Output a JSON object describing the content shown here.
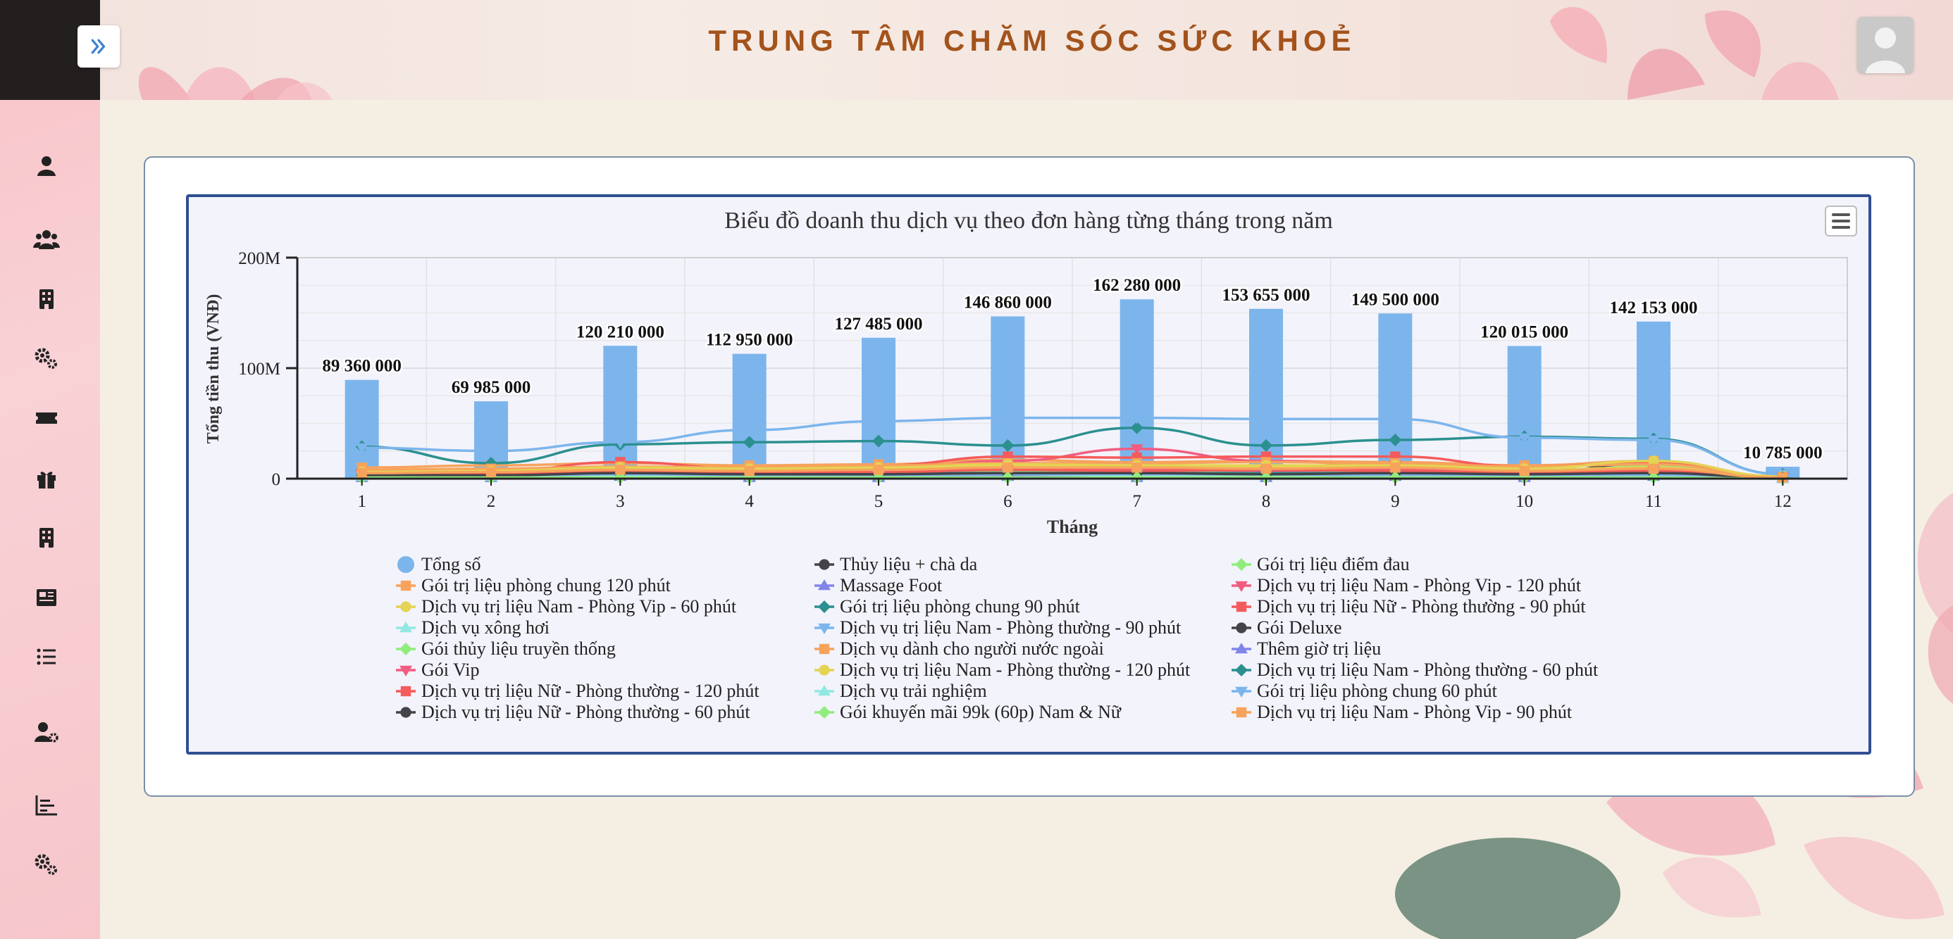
{
  "header": {
    "title": "TRUNG TÂM CHĂM SÓC SỨC KHOẺ"
  },
  "sidebar": {
    "toggle_icon": "double-chevron-right-icon",
    "icons": [
      "user-icon",
      "users-icon",
      "building-icon",
      "gears-icon",
      "ticket-icon",
      "gift-icon",
      "building-icon",
      "newspaper-icon",
      "list-icon",
      "user-gear-icon",
      "chart-bar-icon",
      "gears-icon",
      "gears-icon"
    ]
  },
  "colors": {
    "accent": "#a3531b",
    "frame": "#2f4f92",
    "total": "#7cb5ec"
  },
  "chart_data": {
    "type": "bar",
    "title": "Biểu đồ doanh thu dịch vụ theo đơn hàng từng tháng trong năm",
    "xlabel": "Tháng",
    "ylabel": "Tổng tiền thu (VNĐ)",
    "ylim": [
      0,
      200000000
    ],
    "yticks": [
      "0",
      "100M",
      "200M"
    ],
    "categories": [
      "1",
      "2",
      "3",
      "4",
      "5",
      "6",
      "7",
      "8",
      "9",
      "10",
      "11",
      "12"
    ],
    "bar_series": {
      "name": "Tổng số",
      "color": "#7cb5ec",
      "values": [
        89360000,
        69985000,
        120210000,
        112950000,
        127485000,
        146860000,
        162280000,
        153655000,
        149500000,
        120015000,
        142153000,
        10785000
      ],
      "labels": [
        "89 360 000",
        "69 985 000",
        "120 210 000",
        "112 950 000",
        "127 485 000",
        "146 860 000",
        "162 280 000",
        "153 655 000",
        "149 500 000",
        "120 015 000",
        "142 153 000",
        "10 785 000"
      ]
    },
    "line_series": [
      {
        "name": "Thủy liệu + chà da",
        "color": "#434348",
        "marker": "circle",
        "values": [
          8000000,
          6000000,
          9000000,
          7000000,
          8000000,
          5000000,
          4000000,
          6000000,
          7000000,
          5000000,
          14000000,
          1000000
        ]
      },
      {
        "name": "Gói trị liệu điểm đau",
        "color": "#90ed7d",
        "marker": "diamond",
        "values": [
          1000000,
          1000000,
          2000000,
          1000000,
          2000000,
          3000000,
          2000000,
          1000000,
          2000000,
          1000000,
          12000000,
          1000000
        ]
      },
      {
        "name": "Gói trị liệu phòng chung 120 phút",
        "color": "#f7a35c",
        "marker": "square",
        "values": [
          10000000,
          12000000,
          14000000,
          12000000,
          13000000,
          17000000,
          15000000,
          16000000,
          15000000,
          12000000,
          16000000,
          2000000
        ]
      },
      {
        "name": "Massage Foot",
        "color": "#8085e9",
        "marker": "triangle",
        "values": [
          2000000,
          2000000,
          3000000,
          2000000,
          2000000,
          3000000,
          3000000,
          2000000,
          3000000,
          2000000,
          4000000,
          1000000
        ]
      },
      {
        "name": "Dịch vụ trị liệu Nam - Phòng Vip - 120 phút",
        "color": "#f15c80",
        "marker": "triangle-down",
        "values": [
          4000000,
          5000000,
          8000000,
          6000000,
          9000000,
          16000000,
          27000000,
          16000000,
          12000000,
          8000000,
          10000000,
          1000000
        ]
      },
      {
        "name": "Dịch vụ trị liệu Nam - Phòng Vip - 60 phút",
        "color": "#e4d354",
        "marker": "circle",
        "values": [
          5000000,
          6000000,
          10000000,
          8000000,
          10000000,
          12000000,
          11000000,
          10000000,
          12000000,
          8000000,
          10000000,
          1000000
        ]
      },
      {
        "name": "Gói trị liệu phòng chung 90 phút",
        "color": "#2b908f",
        "marker": "diamond",
        "values": [
          29000000,
          14000000,
          31000000,
          33000000,
          34000000,
          30000000,
          46000000,
          30000000,
          35000000,
          38000000,
          36000000,
          4000000
        ]
      },
      {
        "name": "Dịch vụ trị liệu Nữ - Phòng thường - 90 phút",
        "color": "#f45b5b",
        "marker": "square",
        "values": [
          6000000,
          6000000,
          15000000,
          9000000,
          12000000,
          20000000,
          19000000,
          20000000,
          20000000,
          11000000,
          14000000,
          2000000
        ]
      },
      {
        "name": "Dịch vụ xông hơi",
        "color": "#91e8e1",
        "marker": "triangle",
        "values": [
          1000000,
          1000000,
          2000000,
          1000000,
          1000000,
          2000000,
          2000000,
          2000000,
          2000000,
          1000000,
          2000000,
          0
        ]
      },
      {
        "name": "Dịch vụ trị liệu Nam - Phòng thường - 90 phút",
        "color": "#7cb5ec",
        "marker": "triangle-down",
        "values": [
          28000000,
          25000000,
          33000000,
          44000000,
          52000000,
          55000000,
          55000000,
          54000000,
          54000000,
          37000000,
          35000000,
          4000000
        ]
      },
      {
        "name": "Gói Deluxe",
        "color": "#434348",
        "marker": "circle",
        "values": [
          2000000,
          2000000,
          4000000,
          3000000,
          3000000,
          2000000,
          2000000,
          3000000,
          4000000,
          3000000,
          6000000,
          1000000
        ]
      },
      {
        "name": "Gói thủy liệu truyền thống",
        "color": "#90ed7d",
        "marker": "diamond",
        "values": [
          3000000,
          3000000,
          6000000,
          4000000,
          5000000,
          6000000,
          5000000,
          6000000,
          5000000,
          4000000,
          8000000,
          1000000
        ]
      },
      {
        "name": "Dịch vụ dành cho người nước ngoài",
        "color": "#f7a35c",
        "marker": "square",
        "values": [
          8000000,
          9000000,
          11000000,
          10000000,
          12000000,
          14000000,
          14000000,
          15000000,
          14000000,
          11000000,
          13000000,
          1000000
        ]
      },
      {
        "name": "Thêm giờ trị liệu",
        "color": "#8085e9",
        "marker": "triangle",
        "values": [
          1000000,
          1000000,
          2000000,
          1000000,
          1000000,
          2000000,
          1000000,
          1000000,
          2000000,
          1000000,
          2000000,
          0
        ]
      },
      {
        "name": "Gói Vip",
        "color": "#f15c80",
        "marker": "triangle-down",
        "values": [
          3000000,
          4000000,
          6000000,
          5000000,
          6000000,
          8000000,
          9000000,
          7000000,
          8000000,
          5000000,
          7000000,
          1000000
        ]
      },
      {
        "name": "Dịch vụ trị liệu Nam - Phòng thường - 120 phút",
        "color": "#e4d354",
        "marker": "circle",
        "values": [
          6000000,
          7000000,
          10000000,
          9000000,
          10000000,
          13000000,
          12000000,
          12000000,
          12000000,
          9000000,
          16000000,
          2000000
        ]
      },
      {
        "name": "Dịch vụ trị liệu Nam - Phòng thường - 60 phút",
        "color": "#2b908f",
        "marker": "diamond",
        "values": [
          3000000,
          3000000,
          5000000,
          4000000,
          5000000,
          5000000,
          5000000,
          5000000,
          5000000,
          4000000,
          6000000,
          1000000
        ]
      },
      {
        "name": "Dịch vụ trị liệu Nữ - Phòng thường - 120 phút",
        "color": "#f45b5b",
        "marker": "square",
        "values": [
          4000000,
          4000000,
          7000000,
          5000000,
          6000000,
          8000000,
          7000000,
          8000000,
          7000000,
          5000000,
          7000000,
          1000000
        ]
      },
      {
        "name": "Dịch vụ trải nghiệm",
        "color": "#91e8e1",
        "marker": "triangle",
        "values": [
          2000000,
          2000000,
          3000000,
          3000000,
          3000000,
          4000000,
          3000000,
          3000000,
          4000000,
          3000000,
          4000000,
          0
        ]
      },
      {
        "name": "Gói trị liệu phòng chung 60 phút",
        "color": "#7cb5ec",
        "marker": "triangle-down",
        "values": [
          2000000,
          2000000,
          4000000,
          3000000,
          3000000,
          4000000,
          4000000,
          4000000,
          3000000,
          3000000,
          3000000,
          0
        ]
      },
      {
        "name": "Dịch vụ trị liệu Nữ - Phòng thường - 60 phút",
        "color": "#434348",
        "marker": "circle",
        "values": [
          3000000,
          3000000,
          5000000,
          4000000,
          4000000,
          5000000,
          5000000,
          4000000,
          5000000,
          4000000,
          5000000,
          1000000
        ]
      },
      {
        "name": "Gói khuyến mãi 99k (60p) Nam & Nữ",
        "color": "#90ed7d",
        "marker": "diamond",
        "values": [
          1000000,
          1000000,
          1000000,
          1000000,
          1000000,
          1000000,
          1000000,
          1000000,
          1000000,
          1000000,
          1000000,
          0
        ]
      },
      {
        "name": "Dịch vụ trị liệu Nam - Phòng Vip - 90 phút",
        "color": "#f7a35c",
        "marker": "square",
        "values": [
          5000000,
          6000000,
          8000000,
          7000000,
          8000000,
          10000000,
          10000000,
          9000000,
          10000000,
          7000000,
          9000000,
          1000000
        ]
      }
    ],
    "legend": {
      "placement": "bottom",
      "columns": 3
    },
    "grid": true
  }
}
